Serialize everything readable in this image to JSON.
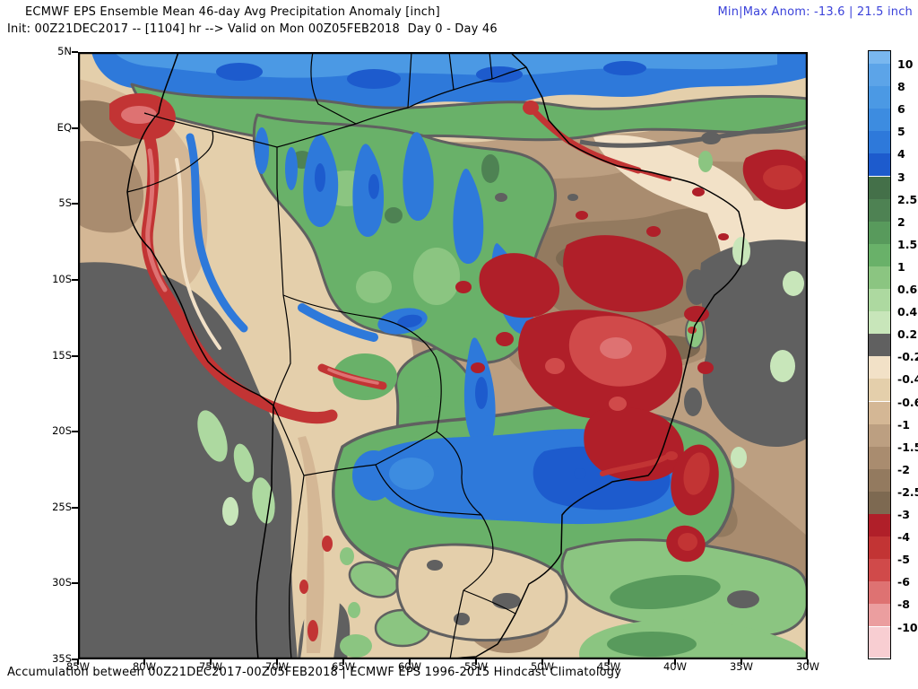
{
  "header": {
    "title": "ECMWF EPS Ensemble Mean 46-day Avg Precipitation Anomaly [inch]",
    "init_line": "Init: 00Z21DEC2017 -- [1104] hr --> Valid on Mon 00Z05FEB2018  Day 0 - Day 46",
    "minmax_label": "Min|Max Anom: -13.6 | 21.5 inch"
  },
  "footer": {
    "caption": "Accumulation between 00Z21DEC2017-00Z05FEB2018 | ECMWF EPS 1996-2015 Hindcast Climatology"
  },
  "axes": {
    "lat_labels": [
      "5N",
      "EQ",
      "5S",
      "10S",
      "15S",
      "20S",
      "25S",
      "30S",
      "35S"
    ],
    "lon_labels": [
      "85W",
      "80W",
      "75W",
      "70W",
      "65W",
      "60W",
      "55W",
      "50W",
      "45W",
      "40W",
      "35W",
      "30W"
    ]
  },
  "colorbar": {
    "labels_top_to_bottom": [
      "10",
      "8",
      "6",
      "5",
      "4",
      "3",
      "2.5",
      "2",
      "1.5",
      "1",
      "0.6",
      "0.4",
      "0.2",
      "-0.2",
      "-0.4",
      "-0.6",
      "-1",
      "-1.5",
      "-2",
      "-2.5",
      "-3",
      "-4",
      "-5",
      "-6",
      "-8",
      "-10"
    ],
    "colors_top_to_bottom": [
      "#79b7ef",
      "#5ca4e8",
      "#4b99e4",
      "#3d8ce0",
      "#2e79da",
      "#1d5bcd",
      "#447049",
      "#4e8253",
      "#589a5c",
      "#69b169",
      "#8bc581",
      "#add9a0",
      "#c8e6ba",
      "#606060",
      "#f2e1c7",
      "#e4cfab",
      "#d4b795",
      "#bc9f81",
      "#a98c6f",
      "#937a5f",
      "#7d6951",
      "#b01f29",
      "#c23434",
      "#d04a4a",
      "#de7272",
      "#eb9e9f",
      "#f8ced2"
    ]
  },
  "palette": {
    "blue_gt10": "#79b7ef",
    "blue_8_10": "#5ca4e8",
    "blue_6_8": "#4b99e4",
    "blue_5_6": "#3d8ce0",
    "blue_4_5": "#2e79da",
    "blue_3_4": "#1d5bcd",
    "green_25_3": "#447049",
    "green_2_25": "#4e8253",
    "green_15_2": "#589a5c",
    "green_1_15": "#69b169",
    "green_06_1": "#8bc581",
    "green_04_06": "#add9a0",
    "green_02_04": "#c8e6ba",
    "gray_neutral": "#606060",
    "tan_m02": "#f2e1c7",
    "tan_m04": "#e4cfab",
    "tan_m06": "#d4b795",
    "brown_m1": "#bc9f81",
    "brown_m15": "#a98c6f",
    "brown_m2": "#937a5f",
    "brown_m25": "#7d6951",
    "red_m3": "#b01f29",
    "red_m4": "#c23434",
    "red_m5": "#d04a4a",
    "red_m6": "#de7272",
    "red_m8": "#eb9e9f",
    "red_lt10": "#f8ced2",
    "line_black": "#000000"
  },
  "colors": {
    "annotation_blue": "#3b42da",
    "text_black": "#000000",
    "background": "#ffffff"
  },
  "chart_data": {
    "type": "heatmap",
    "title": "ECMWF EPS Ensemble Mean 46-day Avg Precipitation Anomaly [inch]",
    "init": "00Z21DEC2017",
    "forecast_hour": "[1104] hr",
    "valid": "Mon 00Z05FEB2018",
    "day_span": "Day 0 - Day 46",
    "units": "inch",
    "min_anomaly": -13.6,
    "max_anomaly": 21.5,
    "accumulation_period": "00Z21DEC2017-00Z05FEB2018",
    "climatology": "ECMWF EPS 1996-2015 Hindcast Climatology",
    "region": "South America",
    "x_axis": {
      "tick_labels": [
        "85W",
        "80W",
        "75W",
        "70W",
        "65W",
        "60W",
        "55W",
        "50W",
        "45W",
        "40W",
        "35W",
        "30W"
      ],
      "range_deg_west": [
        85,
        30
      ]
    },
    "y_axis": {
      "tick_labels": [
        "5N",
        "EQ",
        "5S",
        "10S",
        "15S",
        "20S",
        "25S",
        "30S",
        "35S"
      ],
      "range_lat_deg": [
        5,
        -35
      ]
    },
    "colorbar_levels_inch": [
      10,
      8,
      6,
      5,
      4,
      3,
      2.5,
      2,
      1.5,
      1,
      0.6,
      0.4,
      0.2,
      -0.2,
      -0.4,
      -0.6,
      -1,
      -1.5,
      -2,
      -2.5,
      -3,
      -4,
      -5,
      -6,
      -8,
      -10
    ],
    "legend_position": "right",
    "grid": false,
    "notable_features": [
      {
        "area": "Northern South America band (Colombia, Venezuela, Guianas, north of ~2S)",
        "anomaly_inch": "+3 to +10 (wet, blue band)"
      },
      {
        "area": "Ecuador and coastal Peru / Andes stripe",
        "anomaly_inch": "-3 to -6 (dry red snake along Andes)"
      },
      {
        "area": "Central and eastern Brazil (5S-18S, 58W-42W)",
        "anomaly_inch": "-2 to -5 (large dry region with dark red core)"
      },
      {
        "area": "Northeast Brazil coast and adjacent tropical Atlantic",
        "anomaly_inch": "-3 to -5 (red streaks and blob near 3S 33W)"
      },
      {
        "area": "Paraguay / Southeast Brazil (20S-26S, 58W-44W)",
        "anomaly_inch": "+3 to +6 (large wet blue blob ringed by green)"
      },
      {
        "area": "South Atlantic near 25S-28S 40W",
        "anomaly_inch": "-3 to -5 (red blobs in brown band)"
      },
      {
        "area": "Southeast Pacific and west Atlantic patches",
        "anomaly_inch": "-0.2 to +0.2 (neutral gray)"
      },
      {
        "area": "Bolivia and western Amazon",
        "anomaly_inch": "+0.6 to +4 (green with blue streaks)"
      }
    ]
  }
}
